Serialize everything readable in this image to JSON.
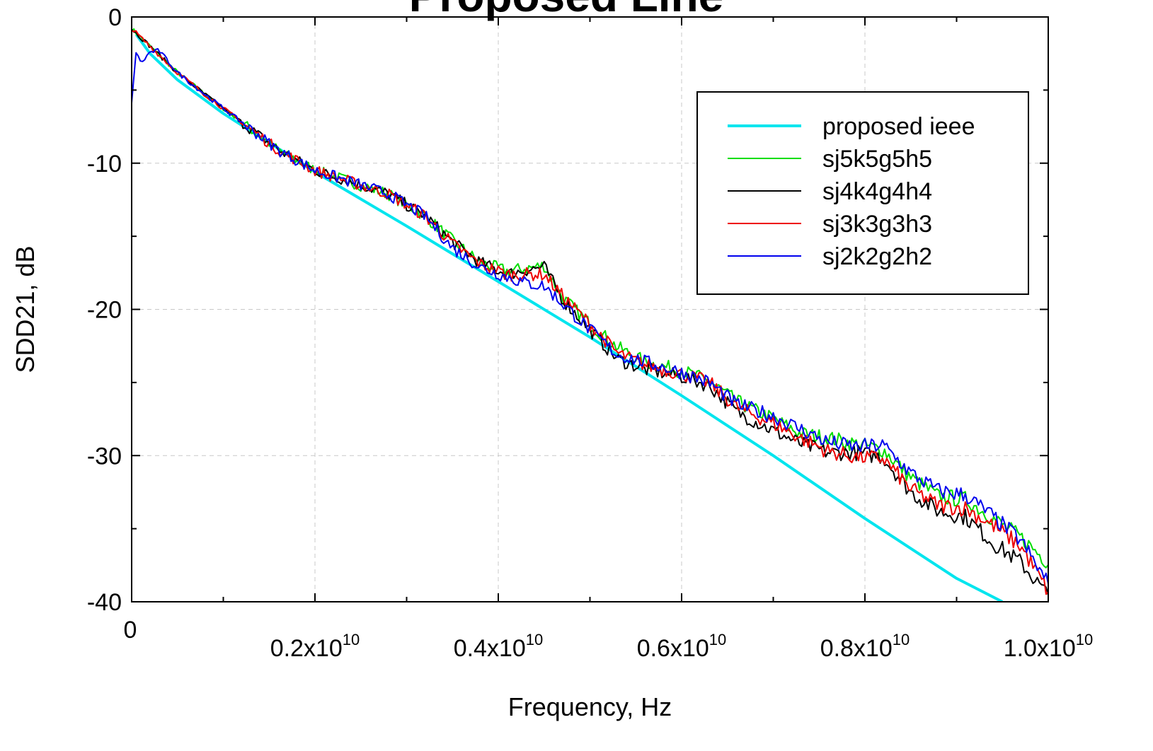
{
  "chart_data": {
    "type": "line",
    "title": "Proposed Line",
    "xlabel": "Frequency, Hz",
    "ylabel": "SDD21, dB",
    "xlim": [
      0,
      10000000000
    ],
    "ylim": [
      -40,
      0
    ],
    "grid": true,
    "legend_position": "top-right",
    "x_ticks": [
      {
        "value": 0,
        "mantissa": "0",
        "exp": ""
      },
      {
        "value": 2000000000,
        "mantissa": "0.2x10",
        "exp": "10"
      },
      {
        "value": 4000000000,
        "mantissa": "0.4x10",
        "exp": "10"
      },
      {
        "value": 6000000000,
        "mantissa": "0.6x10",
        "exp": "10"
      },
      {
        "value": 8000000000,
        "mantissa": "0.8x10",
        "exp": "10"
      },
      {
        "value": 10000000000,
        "mantissa": "1.0x10",
        "exp": "10"
      }
    ],
    "y_ticks": [
      {
        "value": 0,
        "label": "0"
      },
      {
        "value": -10,
        "label": "-10"
      },
      {
        "value": -20,
        "label": "-20"
      },
      {
        "value": -30,
        "label": "-30"
      },
      {
        "value": -40,
        "label": "-40"
      }
    ],
    "series": [
      {
        "name": "proposed ieee",
        "color": "#00e5ee",
        "width": 4,
        "x": [
          50000000,
          200000000,
          500000000,
          1000000000,
          1500000000,
          2000000000,
          3000000000,
          4000000000,
          5000000000,
          6000000000,
          7000000000,
          8000000000,
          9000000000,
          9500000000
        ],
        "y": [
          -1.2,
          -2.5,
          -4.3,
          -6.6,
          -8.6,
          -10.6,
          -14.3,
          -18.1,
          -21.9,
          -25.9,
          -30.0,
          -34.3,
          -38.4,
          -40.0
        ]
      },
      {
        "name": "sj5k5g5h5",
        "color": "#00dd00",
        "width": 2,
        "x": [
          0,
          200000000,
          500000000,
          800000000,
          1200000000,
          1600000000,
          2000000000,
          2400000000,
          2800000000,
          3200000000,
          3500000000,
          3800000000,
          4100000000,
          4300000000,
          4500000000,
          4700000000,
          5000000000,
          5300000000,
          5600000000,
          6000000000,
          6300000000,
          6600000000,
          7000000000,
          7300000000,
          7600000000,
          7900000000,
          8200000000,
          8500000000,
          8800000000,
          9100000000,
          9400000000,
          9700000000,
          10000000000
        ],
        "y": [
          -0.8,
          -2.0,
          -3.8,
          -5.3,
          -7.2,
          -9.1,
          -10.5,
          -11.3,
          -12.1,
          -13.6,
          -15.3,
          -16.8,
          -17.4,
          -17.2,
          -17.0,
          -19.2,
          -21.0,
          -22.6,
          -23.6,
          -24.2,
          -24.9,
          -26.3,
          -27.5,
          -28.5,
          -28.8,
          -29.2,
          -29.6,
          -31.5,
          -32.8,
          -33.0,
          -34.3,
          -35.6,
          -37.3
        ]
      },
      {
        "name": "sj4k4g4h4",
        "color": "#000000",
        "width": 2,
        "x": [
          0,
          200000000,
          500000000,
          800000000,
          1200000000,
          1600000000,
          2000000000,
          2400000000,
          2800000000,
          3200000000,
          3500000000,
          3800000000,
          4100000000,
          4300000000,
          4500000000,
          4700000000,
          5000000000,
          5300000000,
          5600000000,
          6000000000,
          6300000000,
          6600000000,
          7000000000,
          7300000000,
          7600000000,
          7900000000,
          8200000000,
          8500000000,
          8800000000,
          9100000000,
          9400000000,
          9700000000,
          10000000000
        ],
        "y": [
          -0.8,
          -2.0,
          -3.8,
          -5.3,
          -7.2,
          -9.1,
          -10.5,
          -11.3,
          -12.1,
          -13.6,
          -15.4,
          -16.8,
          -17.6,
          -17.3,
          -17.1,
          -19.3,
          -21.4,
          -23.4,
          -24.1,
          -24.6,
          -25.2,
          -27.0,
          -28.3,
          -29.2,
          -29.8,
          -29.8,
          -30.1,
          -32.5,
          -33.8,
          -34.2,
          -36.0,
          -37.3,
          -39.6
        ]
      },
      {
        "name": "sj3k3g3h3",
        "color": "#ee0000",
        "width": 2,
        "x": [
          0,
          200000000,
          500000000,
          800000000,
          1200000000,
          1600000000,
          2000000000,
          2400000000,
          2800000000,
          3200000000,
          3500000000,
          3800000000,
          4100000000,
          4300000000,
          4500000000,
          4700000000,
          5000000000,
          5300000000,
          5600000000,
          6000000000,
          6300000000,
          6600000000,
          7000000000,
          7300000000,
          7600000000,
          7900000000,
          8200000000,
          8500000000,
          8800000000,
          9100000000,
          9400000000,
          9700000000,
          10000000000
        ],
        "y": [
          -0.8,
          -2.0,
          -3.8,
          -5.3,
          -7.2,
          -9.1,
          -10.5,
          -11.3,
          -12.1,
          -13.6,
          -15.5,
          -16.9,
          -17.6,
          -17.6,
          -17.6,
          -19.1,
          -21.0,
          -23.0,
          -23.8,
          -24.4,
          -25.0,
          -26.7,
          -27.8,
          -28.8,
          -29.7,
          -30.1,
          -30.2,
          -32.3,
          -33.4,
          -33.6,
          -34.8,
          -36.2,
          -39.3
        ]
      },
      {
        "name": "sj2k2g2h2",
        "color": "#0000ee",
        "width": 2,
        "x": [
          0,
          50000000,
          100000000,
          200000000,
          300000000,
          500000000,
          800000000,
          1200000000,
          1600000000,
          2000000000,
          2400000000,
          2800000000,
          3200000000,
          3500000000,
          3800000000,
          4100000000,
          4300000000,
          4500000000,
          4700000000,
          5000000000,
          5300000000,
          5600000000,
          6000000000,
          6300000000,
          6600000000,
          7000000000,
          7300000000,
          7600000000,
          7900000000,
          8200000000,
          8500000000,
          8800000000,
          9100000000,
          9400000000,
          9700000000,
          10000000000
        ],
        "y": [
          -6.0,
          -2.2,
          -3.2,
          -2.4,
          -2.3,
          -3.8,
          -5.3,
          -7.2,
          -9.1,
          -10.5,
          -11.3,
          -12.1,
          -13.6,
          -15.8,
          -17.1,
          -17.8,
          -18.2,
          -18.4,
          -19.6,
          -21.4,
          -23.1,
          -23.6,
          -24.3,
          -25.0,
          -26.5,
          -27.3,
          -28.2,
          -29.1,
          -29.4,
          -29.3,
          -31.2,
          -32.4,
          -32.7,
          -34.2,
          -35.8,
          -38.8
        ]
      }
    ]
  }
}
